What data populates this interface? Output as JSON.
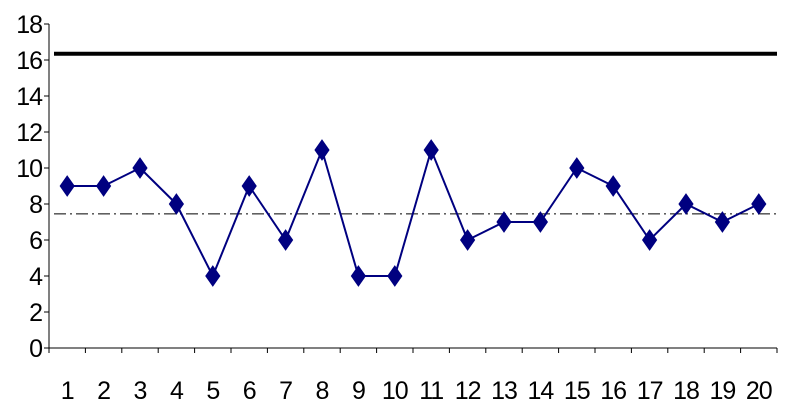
{
  "chart_data": {
    "type": "line",
    "title": "",
    "xlabel": "",
    "ylabel": "",
    "x": [
      1,
      2,
      3,
      4,
      5,
      6,
      7,
      8,
      9,
      10,
      11,
      12,
      13,
      14,
      15,
      16,
      17,
      18,
      19,
      20
    ],
    "ylim": [
      0,
      18
    ],
    "y_ticks": [
      0,
      2,
      4,
      6,
      8,
      10,
      12,
      14,
      16,
      18
    ],
    "grid": false,
    "legend": "none",
    "series": [
      {
        "values": [
          9,
          9,
          10,
          8,
          4,
          9,
          6,
          11,
          4,
          4,
          11,
          6,
          7,
          7,
          10,
          9,
          6,
          8,
          7,
          8
        ],
        "color": "#000080",
        "marker": "diamond"
      }
    ],
    "reference_lines": [
      {
        "value": 16.35,
        "style": "solid",
        "color": "#000000"
      },
      {
        "value": 7.45,
        "style": "dash-dot",
        "color": "#000000"
      }
    ]
  }
}
